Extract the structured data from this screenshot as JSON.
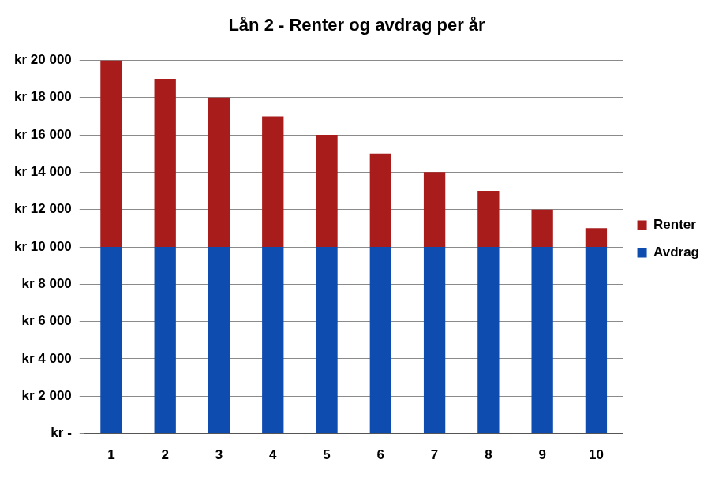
{
  "chart_data": {
    "type": "bar",
    "title": "Lån 2 - Renter og avdrag per år",
    "categories": [
      "1",
      "2",
      "3",
      "4",
      "5",
      "6",
      "7",
      "8",
      "9",
      "10"
    ],
    "series": [
      {
        "name": "Avdrag",
        "color": "#0f4cb0",
        "values": [
          10000,
          10000,
          10000,
          10000,
          10000,
          10000,
          10000,
          10000,
          10000,
          10000
        ]
      },
      {
        "name": "Renter",
        "color": "#a81c1c",
        "values": [
          10000,
          9000,
          8000,
          7000,
          6000,
          5000,
          4000,
          3000,
          2000,
          1000
        ]
      }
    ],
    "stacked": true,
    "ylim": [
      0,
      20000
    ],
    "yticks": [
      {
        "value": 0,
        "label": "kr -"
      },
      {
        "value": 2000,
        "label": "kr 2 000"
      },
      {
        "value": 4000,
        "label": "kr 4 000"
      },
      {
        "value": 6000,
        "label": "kr 6 000"
      },
      {
        "value": 8000,
        "label": "kr 8 000"
      },
      {
        "value": 10000,
        "label": "kr 10 000"
      },
      {
        "value": 12000,
        "label": "kr 12 000"
      },
      {
        "value": 14000,
        "label": "kr 14 000"
      },
      {
        "value": 16000,
        "label": "kr 16 000"
      },
      {
        "value": 18000,
        "label": "kr 18 000"
      },
      {
        "value": 20000,
        "label": "kr 20 000"
      }
    ],
    "grid": true,
    "legend": "right"
  }
}
